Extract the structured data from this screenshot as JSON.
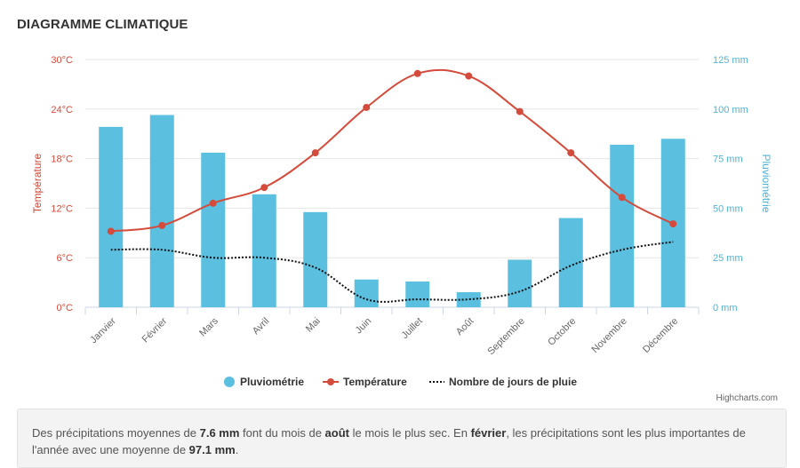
{
  "header": {
    "title": "DIAGRAMME CLIMATIQUE"
  },
  "colors": {
    "rain": "#5bbfe0",
    "temp": "#d44b3b",
    "rain_axis": "#4fb3d6",
    "days": "#111111"
  },
  "chart_data": {
    "type": "bar",
    "categories": [
      "Janvier",
      "Février",
      "Mars",
      "Avril",
      "Mai",
      "Juin",
      "Juillet",
      "Août",
      "Septembre",
      "Octobre",
      "Novembre",
      "Décembre"
    ],
    "series": [
      {
        "name": "Pluviométrie",
        "type": "bar",
        "axis": "right",
        "values": [
          91,
          97,
          78,
          57,
          48,
          14,
          13,
          7.6,
          24,
          45,
          82,
          85
        ]
      },
      {
        "name": "Température",
        "type": "line",
        "axis": "left",
        "values": [
          9.2,
          9.9,
          12.6,
          14.5,
          18.7,
          24.2,
          28.3,
          28.0,
          23.7,
          18.7,
          13.3,
          10.1
        ]
      },
      {
        "name": "Nombre de jours de pluie",
        "type": "line",
        "axis": "right",
        "dash": "dotted",
        "values": [
          29,
          29,
          25,
          25,
          20,
          4,
          4,
          4,
          8,
          21,
          29,
          33
        ]
      }
    ],
    "y_left": {
      "label": "Température",
      "ticks": [
        "0°C",
        "6°C",
        "12°C",
        "18°C",
        "24°C",
        "30°C"
      ],
      "range": [
        0,
        30
      ]
    },
    "y_right": {
      "label": "Pluviométrie",
      "ticks": [
        "0 mm",
        "25 mm",
        "50 mm",
        "75 mm",
        "100 mm",
        "125 mm"
      ],
      "range": [
        0,
        125
      ]
    },
    "grid": true,
    "legend": "bottom-center"
  },
  "credits": "Highcharts.com",
  "note": {
    "p1": "Des précipitations moyennes de ",
    "v1": "7.6 mm",
    "p2": " font du mois de ",
    "v2": "août",
    "p3": " le mois le plus sec. En ",
    "v3": "février",
    "p4": ", les précipitations sont les plus importantes de l'année avec une moyenne de ",
    "v4": "97.1 mm",
    "p5": "."
  }
}
